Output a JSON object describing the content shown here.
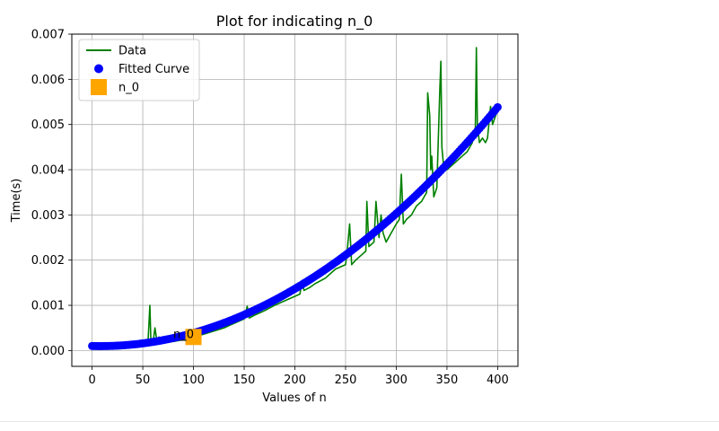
{
  "chart_data": {
    "type": "line",
    "title": "Plot for indicating n_0",
    "xlabel": "Values of n",
    "ylabel": "Time(s)",
    "xlim": [
      -20,
      420
    ],
    "ylim": [
      -0.00035,
      0.007
    ],
    "xticks": [
      0,
      50,
      100,
      150,
      200,
      250,
      300,
      350,
      400
    ],
    "xtick_labels": [
      "0",
      "50",
      "100",
      "150",
      "200",
      "250",
      "300",
      "350",
      "400"
    ],
    "yticks": [
      0.0,
      0.001,
      0.002,
      0.003,
      0.004,
      0.005,
      0.006,
      0.007
    ],
    "ytick_labels": [
      "0.000",
      "0.001",
      "0.002",
      "0.003",
      "0.004",
      "0.005",
      "0.006",
      "0.007"
    ],
    "grid": true,
    "legend_position": "top-left",
    "legend": [
      {
        "label": "Data",
        "marker": "line",
        "color": "#008000"
      },
      {
        "label": "Fitted Curve",
        "marker": "dot",
        "color": "#0000ff"
      },
      {
        "label": "n_0",
        "marker": "square",
        "color": "#ffa500"
      }
    ],
    "series": [
      {
        "name": "Data",
        "kind": "line",
        "color": "#008000",
        "points": [
          [
            0,
            0.0001
          ],
          [
            10,
            8e-05
          ],
          [
            20,
            8e-05
          ],
          [
            30,
            8e-05
          ],
          [
            40,
            8e-05
          ],
          [
            50,
            0.0001
          ],
          [
            55,
            0.00012
          ],
          [
            57,
            0.001
          ],
          [
            58,
            0.0002
          ],
          [
            60,
            0.00015
          ],
          [
            62,
            0.0005
          ],
          [
            64,
            0.0002
          ],
          [
            66,
            0.0003
          ],
          [
            70,
            0.00018
          ],
          [
            80,
            0.0002
          ],
          [
            90,
            0.00024
          ],
          [
            100,
            0.0003
          ],
          [
            110,
            0.00036
          ],
          [
            120,
            0.00043
          ],
          [
            130,
            0.0005
          ],
          [
            140,
            0.0006
          ],
          [
            150,
            0.0007
          ],
          [
            153,
            0.00098
          ],
          [
            155,
            0.00072
          ],
          [
            160,
            0.00078
          ],
          [
            170,
            0.00088
          ],
          [
            180,
            0.001
          ],
          [
            190,
            0.0011
          ],
          [
            200,
            0.0012
          ],
          [
            205,
            0.00125
          ],
          [
            207,
            0.00155
          ],
          [
            209,
            0.00133
          ],
          [
            215,
            0.0014
          ],
          [
            220,
            0.00148
          ],
          [
            230,
            0.0016
          ],
          [
            240,
            0.0018
          ],
          [
            250,
            0.0019
          ],
          [
            252,
            0.0023
          ],
          [
            254,
            0.0028
          ],
          [
            256,
            0.0019
          ],
          [
            260,
            0.002
          ],
          [
            265,
            0.0021
          ],
          [
            270,
            0.0022
          ],
          [
            271,
            0.0033
          ],
          [
            273,
            0.0023
          ],
          [
            278,
            0.0024
          ],
          [
            280,
            0.0033
          ],
          [
            283,
            0.0025
          ],
          [
            285,
            0.003
          ],
          [
            287,
            0.0026
          ],
          [
            290,
            0.0024
          ],
          [
            295,
            0.0026
          ],
          [
            300,
            0.0028
          ],
          [
            303,
            0.0029
          ],
          [
            305,
            0.0039
          ],
          [
            307,
            0.0028
          ],
          [
            310,
            0.0029
          ],
          [
            315,
            0.003
          ],
          [
            320,
            0.0032
          ],
          [
            325,
            0.0033
          ],
          [
            330,
            0.0035
          ],
          [
            331,
            0.0057
          ],
          [
            333,
            0.0052
          ],
          [
            334,
            0.004
          ],
          [
            335,
            0.0043
          ],
          [
            337,
            0.0034
          ],
          [
            340,
            0.0036
          ],
          [
            343,
            0.0058
          ],
          [
            344,
            0.0064
          ],
          [
            345,
            0.0045
          ],
          [
            347,
            0.004
          ],
          [
            350,
            0.004
          ],
          [
            355,
            0.0041
          ],
          [
            360,
            0.0042
          ],
          [
            365,
            0.0043
          ],
          [
            370,
            0.0044
          ],
          [
            375,
            0.0046
          ],
          [
            378,
            0.0049
          ],
          [
            379,
            0.0067
          ],
          [
            380,
            0.005
          ],
          [
            382,
            0.0046
          ],
          [
            385,
            0.0047
          ],
          [
            388,
            0.0046
          ],
          [
            390,
            0.0047
          ],
          [
            393,
            0.0054
          ],
          [
            395,
            0.005
          ],
          [
            398,
            0.0052
          ],
          [
            400,
            0.0053
          ]
        ]
      },
      {
        "name": "Fitted Curve",
        "kind": "scatter",
        "color": "#0000ff",
        "x_start": 0,
        "x_end": 400,
        "x_step": 2,
        "model": "a*x^2 + b*x + c",
        "coefficients": {
          "a": 3.44e-08,
          "b": -5.5e-07,
          "c": 0.0001
        }
      },
      {
        "name": "n_0",
        "kind": "marker",
        "color": "#ffa500",
        "points": [
          [
            100,
            0.0003
          ]
        ]
      }
    ],
    "annotations": [
      {
        "text": "n_0",
        "x": 80,
        "y": 0.00028
      }
    ]
  }
}
